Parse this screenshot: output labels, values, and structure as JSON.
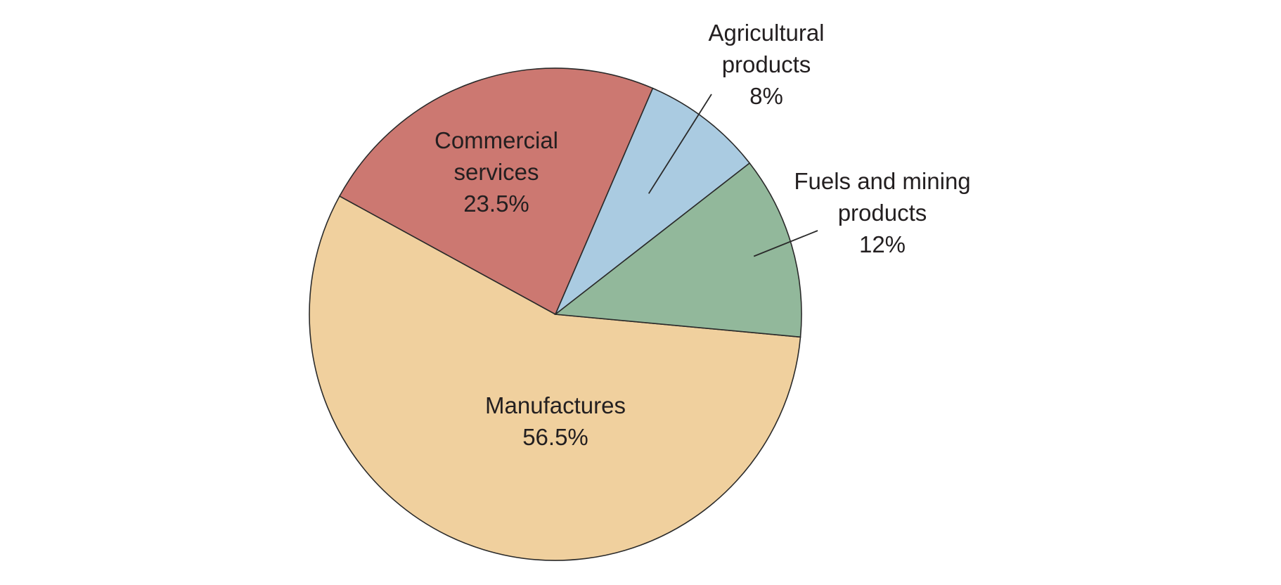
{
  "chart_data": {
    "type": "pie",
    "title": "",
    "slices": [
      {
        "name": "Manufactures",
        "label_lines": [
          "Manufactures",
          "56.5%"
        ],
        "value": 56.5,
        "color": "#f0d09e"
      },
      {
        "name": "Commercial services",
        "label_lines": [
          "Commercial",
          "services",
          "23.5%"
        ],
        "value": 23.5,
        "color": "#cc7871"
      },
      {
        "name": "Agricultural products",
        "label_lines": [
          "Agricultural",
          "products",
          "8%"
        ],
        "value": 8,
        "color": "#aacbe1"
      },
      {
        "name": "Fuels and mining products",
        "label_lines": [
          "Fuels and mining",
          "products",
          "12%"
        ],
        "value": 12,
        "color": "#92b89b"
      }
    ]
  }
}
